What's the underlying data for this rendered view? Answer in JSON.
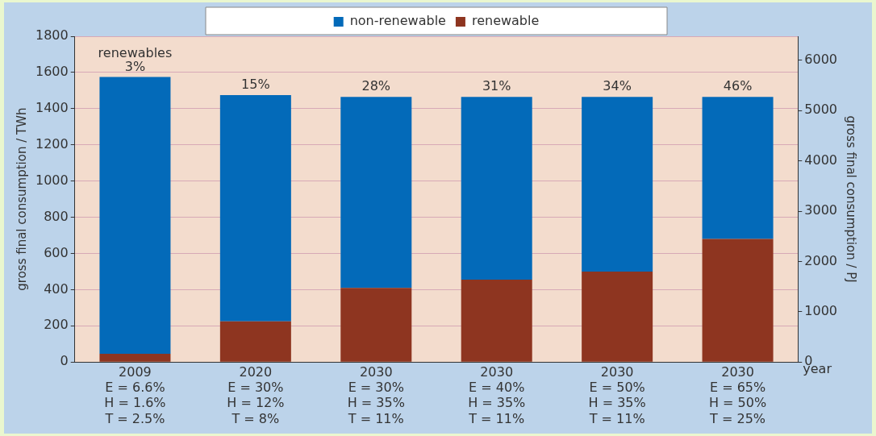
{
  "chart_data": {
    "type": "bar",
    "stacked": true,
    "categories": [
      "2009\nE = 6.6%\nH = 1.6%\nT = 2.5%",
      "2020\nE = 30%\nH = 12%\nT = 8%",
      "2030\nE = 30%\nH = 35%\nT = 11%",
      "2030\nE = 40%\nH = 35%\nT = 11%",
      "2030\nE = 50%\nH = 35%\nT = 11%",
      "2030\nE = 65%\nH = 50%\nT = 25%"
    ],
    "series": [
      {
        "name": "renewable",
        "color": "#8e3520",
        "values": [
          45,
          225,
          410,
          455,
          500,
          680
        ]
      },
      {
        "name": "non-renewable",
        "color": "#036ab9",
        "values": [
          1530,
          1250,
          1055,
          1010,
          965,
          785
        ]
      }
    ],
    "xlabel": "year",
    "ylabel": "gross final consumption / TWh",
    "y2label": "gross final consumption / PJ",
    "ylim": [
      0,
      1800
    ],
    "yticks": [
      0,
      200,
      400,
      600,
      800,
      1000,
      1200,
      1400,
      1600,
      1800
    ],
    "y2lim": [
      0,
      6480
    ],
    "y2ticks": [
      0,
      1000,
      2000,
      3000,
      4000,
      5000,
      6000
    ],
    "grid": "y",
    "legend": "top",
    "annotations": [
      {
        "text": "renewables",
        "x": "2009\nE = 6.6%\nH = 1.6%\nT = 2.5%",
        "y": 1575
      },
      {
        "text": "3%",
        "x": "2009\nE = 6.6%\nH = 1.6%\nT = 2.5%",
        "y": 1575
      },
      {
        "text": "15%",
        "x": "2020\nE = 30%\nH = 12%\nT = 8%",
        "y": 1475
      },
      {
        "text": "28%",
        "x": "2030\nE = 30%\nH = 35%\nT = 11%",
        "y": 1465
      },
      {
        "text": "31%",
        "x": "2030\nE = 40%\nH = 35%\nT = 11%",
        "y": 1465
      },
      {
        "text": "34%",
        "x": "2030\nE = 50%\nH = 35%\nT = 11%",
        "y": 1465
      },
      {
        "text": "46%",
        "x": "2030\nE = 65%\nH = 50%\nT = 25%",
        "y": 1465
      }
    ]
  }
}
